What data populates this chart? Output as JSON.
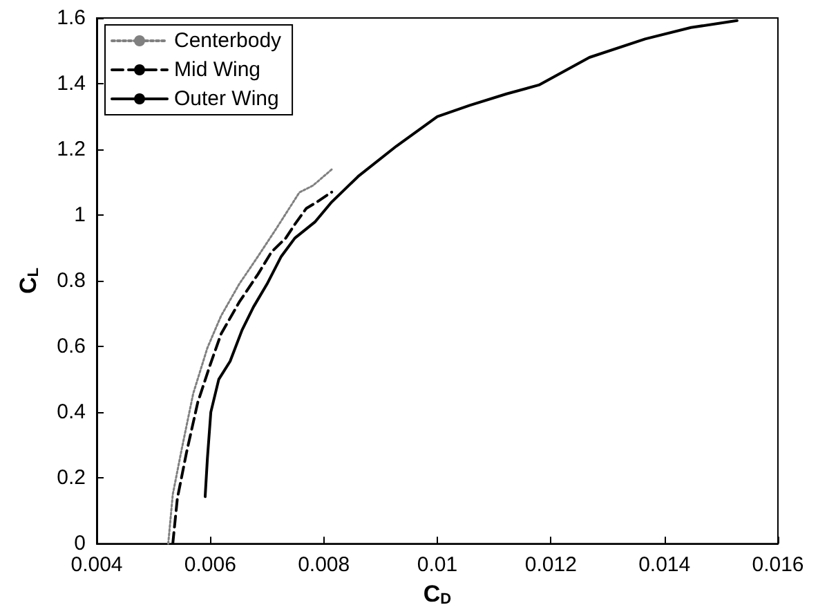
{
  "chart_data": {
    "type": "line",
    "xlabel": "C$_{D}$",
    "ylabel": "C$_{L}$",
    "xlim": [
      0.004,
      0.016
    ],
    "xticks": [
      0.004,
      0.006,
      0.008,
      0.01,
      0.012,
      0.014,
      0.016
    ],
    "ylim": [
      0,
      1.6
    ],
    "yticks": [
      0,
      0.2,
      0.4,
      0.6,
      0.8,
      1,
      1.2,
      1.4,
      1.6
    ],
    "grid": false,
    "legend": "top left",
    "marker": "none",
    "series": [
      {
        "name": "Centerbody",
        "color": "#808080",
        "line_style": "dotted",
        "x": [
          0.00526,
          0.00534,
          0.0055,
          0.0057,
          0.00595,
          0.00619,
          0.00651,
          0.00684,
          0.00716,
          0.00757,
          0.00781,
          0.00814
        ],
        "values": [
          0,
          0.15,
          0.29,
          0.457,
          0.596,
          0.693,
          0.79,
          0.874,
          0.958,
          1.069,
          1.09,
          1.139
        ]
      },
      {
        "name": "Mid Wing",
        "color": "#000000",
        "line_style": "dashed",
        "x": [
          0.00534,
          0.00542,
          0.00558,
          0.00578,
          0.00599,
          0.00619,
          0.00651,
          0.00684,
          0.00708,
          0.00733,
          0.00749,
          0.00769,
          0.00789,
          0.00814
        ],
        "values": [
          0,
          0.137,
          0.276,
          0.43,
          0.54,
          0.638,
          0.735,
          0.82,
          0.888,
          0.93,
          0.972,
          1.02,
          1.041,
          1.07
        ]
      },
      {
        "name": "Outer Wing",
        "color": "#000000",
        "line_style": "solid",
        "x": [
          0.00591,
          0.00595,
          0.00601,
          0.00615,
          0.00635,
          0.00656,
          0.00676,
          0.007,
          0.00725,
          0.00749,
          0.00785,
          0.00814,
          0.00862,
          0.00928,
          0.01,
          0.01057,
          0.01122,
          0.01179,
          0.01268,
          0.01366,
          0.01447,
          0.01528
        ],
        "values": [
          0.143,
          0.26,
          0.4,
          0.5,
          0.555,
          0.65,
          0.72,
          0.79,
          0.874,
          0.93,
          0.98,
          1.04,
          1.12,
          1.21,
          1.3,
          1.334,
          1.369,
          1.396,
          1.48,
          1.536,
          1.571,
          1.592
        ]
      }
    ]
  }
}
